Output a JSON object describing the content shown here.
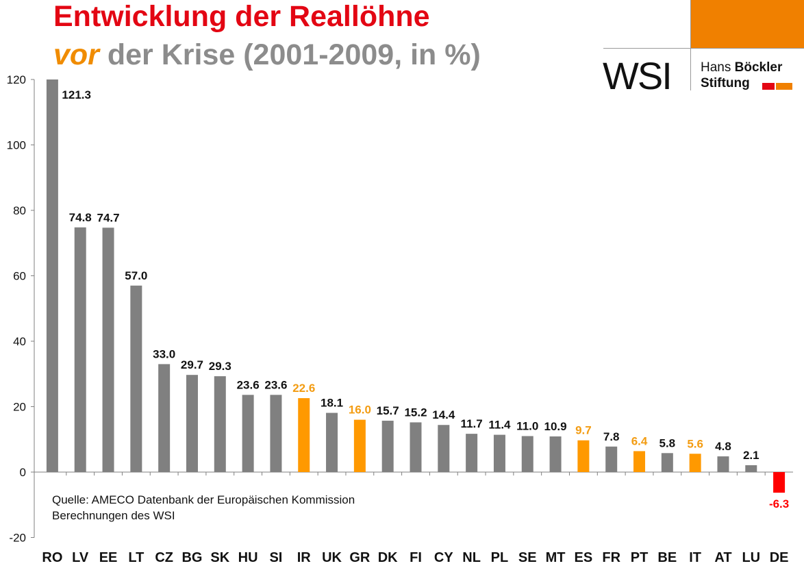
{
  "header": {
    "title_line1": "Entwicklung der Reallöhne",
    "title_line2_emph": "vor",
    "title_line2_rest": " der Krise (2001-2009, in %)"
  },
  "logo": {
    "wsi": "WSI",
    "hbs_line1_regular": "Hans ",
    "hbs_line1_bold": "Böckler",
    "hbs_line2": "Stiftung"
  },
  "source": {
    "line1": "Quelle: AMECO Datenbank der Europäischen Kommission",
    "line2": "Berechnungen des WSI"
  },
  "colors": {
    "default": "#808080",
    "highlight": "#ff9900",
    "negative": "#ff0000",
    "label_default": "#111111",
    "label_highlight": "#f39c12",
    "label_negative": "#ff0000"
  },
  "chart_data": {
    "type": "bar",
    "title": "Entwicklung der Reallöhne vor der Krise (2001-2009, in %)",
    "categories": [
      "RO",
      "LV",
      "EE",
      "LT",
      "CZ",
      "BG",
      "SK",
      "HU",
      "SI",
      "IR",
      "UK",
      "GR",
      "DK",
      "FI",
      "CY",
      "NL",
      "PL",
      "SE",
      "MT",
      "ES",
      "FR",
      "PT",
      "BE",
      "IT",
      "AT",
      "LU",
      "DE"
    ],
    "values": [
      121.3,
      74.8,
      74.7,
      57.0,
      33.0,
      29.7,
      29.3,
      23.6,
      23.6,
      22.6,
      18.1,
      16.0,
      15.7,
      15.2,
      14.4,
      11.7,
      11.4,
      11.0,
      10.9,
      9.7,
      7.8,
      6.4,
      5.8,
      5.6,
      4.8,
      2.1,
      -6.3
    ],
    "value_labels": [
      "121.3",
      "74.8",
      "74.7",
      "57.0",
      "33.0",
      "29.7",
      "29.3",
      "23.6",
      "23.6",
      "22.6",
      "18.1",
      "16.0",
      "15.7",
      "15.2",
      "14.4",
      "11.7",
      "11.4",
      "11.0",
      "10.9",
      "9.7",
      "7.8",
      "6.4",
      "5.8",
      "5.6",
      "4.8",
      "2.1",
      "-6.3"
    ],
    "highlighted": [
      "IR",
      "GR",
      "ES",
      "PT",
      "IT"
    ],
    "yticks": [
      -20,
      0,
      20,
      40,
      60,
      80,
      100,
      120
    ],
    "ylim": [
      -20,
      120
    ],
    "xlabel": "",
    "ylabel": "",
    "grid": false,
    "legend": "none"
  }
}
